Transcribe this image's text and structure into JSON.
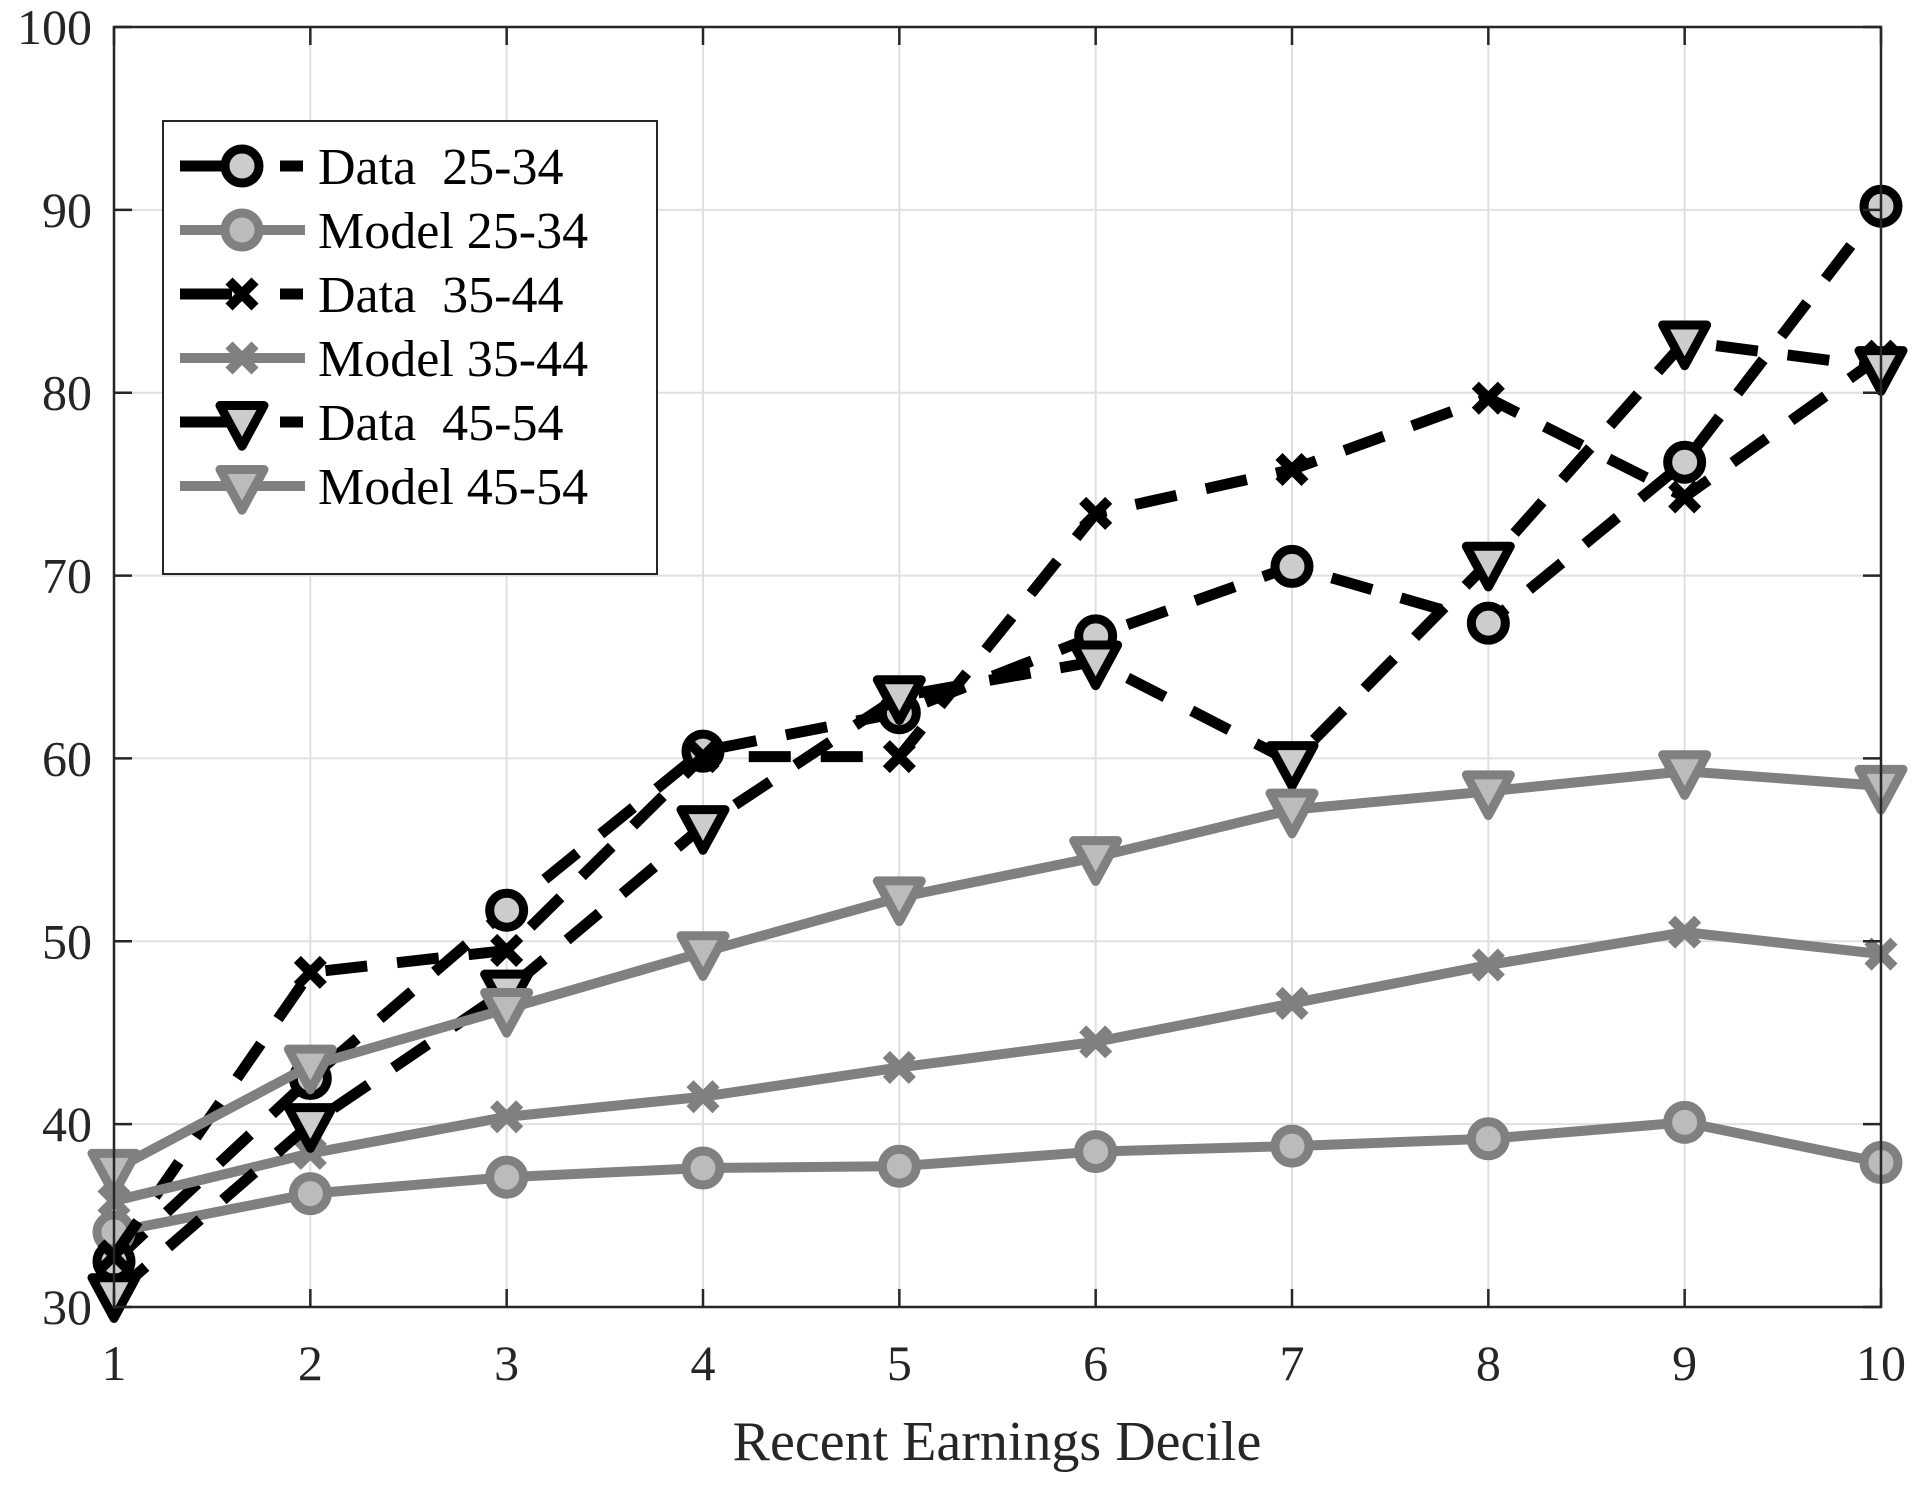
{
  "chart_data": {
    "type": "line",
    "title": "",
    "xlabel": "Recent Earnings Decile",
    "ylabel": "",
    "x": [
      1,
      2,
      3,
      4,
      5,
      6,
      7,
      8,
      9,
      10
    ],
    "xlim": [
      1,
      10
    ],
    "ylim": [
      30,
      100
    ],
    "xticks": [
      "1",
      "2",
      "3",
      "4",
      "5",
      "6",
      "7",
      "8",
      "9",
      "10"
    ],
    "yticks": [
      "30",
      "40",
      "50",
      "60",
      "70",
      "80",
      "90",
      "100"
    ],
    "grid": true,
    "legend_position": "upper left",
    "series": [
      {
        "name": "Data  25-34",
        "style": "dashed",
        "marker": "circle",
        "color": "#000000",
        "values": [
          32.5,
          42.5,
          51.7,
          60.4,
          62.5,
          66.7,
          70.5,
          67.4,
          76.2,
          90.2
        ]
      },
      {
        "name": "Model 25-34",
        "style": "solid",
        "marker": "circle",
        "color": "#808080",
        "values": [
          34.1,
          36.2,
          37.1,
          37.6,
          37.7,
          38.5,
          38.8,
          39.2,
          40.1,
          37.9
        ]
      },
      {
        "name": "Data  35-44",
        "style": "dashed",
        "marker": "x",
        "color": "#000000",
        "values": [
          32.8,
          48.3,
          49.5,
          60.1,
          60.1,
          73.4,
          75.8,
          79.7,
          74.3,
          82.0
        ]
      },
      {
        "name": "Model 35-44",
        "style": "solid",
        "marker": "x",
        "color": "#808080",
        "values": [
          35.8,
          38.4,
          40.4,
          41.5,
          43.1,
          44.5,
          46.6,
          48.7,
          50.5,
          49.3
        ]
      },
      {
        "name": "Data  45-54",
        "style": "dashed",
        "marker": "triangle-down",
        "color": "#000000",
        "values": [
          30.7,
          40.0,
          47.3,
          56.3,
          63.4,
          65.3,
          59.8,
          70.7,
          82.8,
          81.4
        ]
      },
      {
        "name": "Model 45-54",
        "style": "solid",
        "marker": "triangle-down",
        "color": "#808080",
        "values": [
          37.5,
          43.2,
          46.3,
          49.4,
          52.4,
          54.6,
          57.2,
          58.2,
          59.3,
          58.5
        ]
      }
    ]
  },
  "legend": {
    "items": [
      {
        "label": "Data  25-34"
      },
      {
        "label": "Model 25-34"
      },
      {
        "label": "Data  35-44"
      },
      {
        "label": "Model 35-44"
      },
      {
        "label": "Data  45-54"
      },
      {
        "label": "Model 45-54"
      }
    ]
  },
  "colors": {
    "data_line": "#000000",
    "model_line": "#808080",
    "marker_fill_data": "#cccccc",
    "marker_fill_model": "#bbbbbb",
    "grid": "#e0e0e0",
    "axis": "#262626"
  }
}
